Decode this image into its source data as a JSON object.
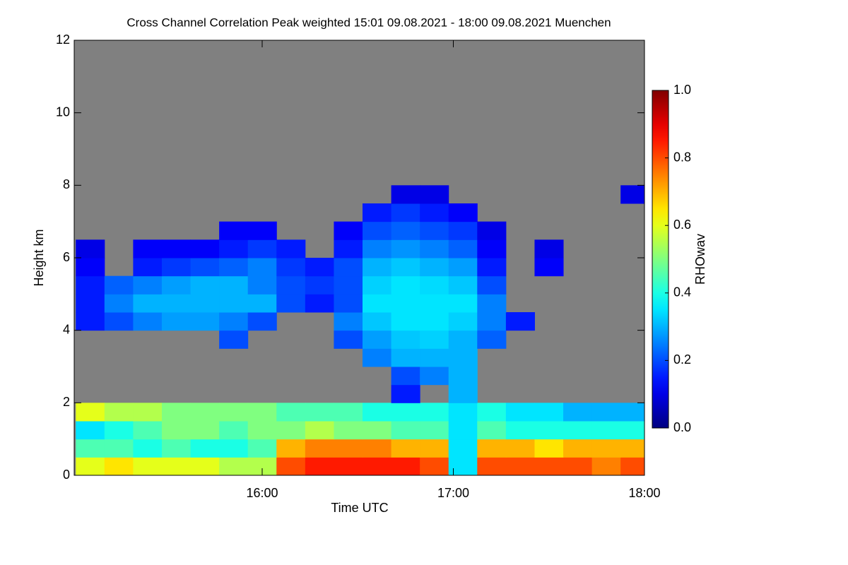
{
  "chart_data": {
    "type": "heatmap",
    "title": "Cross Channel Correlation Peak weighted   15:01 09.08.2021 - 18:00 09.08.2021 Muenchen",
    "xlabel": "Time UTC",
    "ylabel": "Height km",
    "colorbar_label": "RHOwav",
    "colormap": "jet",
    "xlim": [
      15.0167,
      18.0
    ],
    "xticks": [
      {
        "value": 16,
        "label": "16:00"
      },
      {
        "value": 17,
        "label": "17:00"
      },
      {
        "value": 18,
        "label": "18:00"
      }
    ],
    "ylim": [
      0,
      12
    ],
    "yticks": [
      0,
      2,
      4,
      6,
      8,
      10,
      12
    ],
    "zlim": [
      0,
      1
    ],
    "zticks": [
      {
        "value": 0,
        "label": "0.0"
      },
      {
        "value": 0.2,
        "label": "0.2"
      },
      {
        "value": 0.4,
        "label": "0.4"
      },
      {
        "value": 0.6,
        "label": "0.6"
      },
      {
        "value": 0.8,
        "label": "0.8"
      },
      {
        "value": 1,
        "label": "1.0"
      }
    ],
    "x": [
      15.1,
      15.25,
      15.4,
      15.55,
      15.7,
      15.85,
      16.0,
      16.15,
      16.3,
      16.45,
      16.6,
      16.75,
      16.9,
      17.05,
      17.2,
      17.35,
      17.5,
      17.65,
      17.8,
      17.95
    ],
    "y": [
      0.25,
      0.75,
      1.25,
      1.75,
      2.25,
      2.75,
      3.25,
      3.75,
      4.25,
      4.75,
      5.25,
      5.75,
      6.25,
      6.75,
      7.25,
      7.75
    ],
    "z": [
      [
        0.6,
        0.65,
        0.6,
        0.6,
        0.6,
        0.55,
        0.55,
        0.8,
        0.85,
        0.85,
        0.85,
        0.85,
        0.8,
        0.35,
        0.8,
        0.8,
        0.8,
        0.8,
        0.75,
        0.8
      ],
      [
        0.45,
        0.45,
        0.4,
        0.45,
        0.4,
        0.4,
        0.45,
        0.7,
        0.75,
        0.75,
        0.75,
        0.7,
        0.7,
        0.35,
        0.7,
        0.7,
        0.65,
        0.7,
        0.7,
        0.7
      ],
      [
        0.35,
        0.4,
        0.45,
        0.5,
        0.5,
        0.45,
        0.5,
        0.5,
        0.55,
        0.5,
        0.5,
        0.45,
        0.45,
        0.35,
        0.45,
        0.4,
        0.4,
        0.4,
        0.4,
        0.4
      ],
      [
        0.6,
        0.55,
        0.55,
        0.5,
        0.5,
        0.5,
        0.5,
        0.45,
        0.45,
        0.45,
        0.4,
        0.4,
        0.4,
        0.35,
        0.4,
        0.35,
        0.35,
        0.3,
        0.3,
        0.3
      ],
      [
        null,
        null,
        null,
        null,
        null,
        null,
        null,
        null,
        null,
        null,
        null,
        0.15,
        null,
        0.3,
        null,
        null,
        null,
        null,
        null,
        null
      ],
      [
        null,
        null,
        null,
        null,
        null,
        null,
        null,
        null,
        null,
        null,
        null,
        0.2,
        0.25,
        0.3,
        null,
        null,
        null,
        null,
        null,
        null
      ],
      [
        null,
        null,
        null,
        null,
        null,
        null,
        null,
        null,
        null,
        null,
        0.25,
        0.3,
        0.3,
        0.3,
        null,
        null,
        null,
        null,
        null,
        null
      ],
      [
        null,
        null,
        null,
        null,
        null,
        0.2,
        null,
        null,
        null,
        0.2,
        0.28,
        0.32,
        0.33,
        0.3,
        0.22,
        null,
        null,
        null,
        null,
        null
      ],
      [
        0.15,
        0.2,
        0.25,
        0.28,
        0.28,
        0.25,
        0.2,
        null,
        null,
        0.25,
        0.32,
        0.35,
        0.35,
        0.33,
        0.25,
        0.15,
        null,
        null,
        null,
        null
      ],
      [
        0.15,
        0.25,
        0.3,
        0.3,
        0.3,
        0.3,
        0.3,
        0.2,
        0.15,
        0.2,
        0.35,
        0.35,
        0.35,
        0.35,
        0.25,
        null,
        null,
        null,
        null,
        null
      ],
      [
        0.15,
        0.22,
        0.25,
        0.28,
        0.3,
        0.3,
        0.25,
        0.2,
        0.18,
        0.2,
        0.33,
        0.35,
        0.34,
        0.32,
        0.2,
        null,
        null,
        null,
        null,
        null
      ],
      [
        0.12,
        null,
        0.15,
        0.18,
        0.2,
        0.22,
        0.25,
        0.18,
        0.15,
        0.2,
        0.3,
        0.32,
        0.3,
        0.28,
        0.15,
        null,
        0.12,
        null,
        null,
        null
      ],
      [
        0.1,
        null,
        0.12,
        0.12,
        0.12,
        0.15,
        0.18,
        0.15,
        null,
        0.15,
        0.25,
        0.27,
        0.25,
        0.22,
        0.12,
        null,
        0.1,
        null,
        null,
        null
      ],
      [
        null,
        null,
        null,
        null,
        null,
        0.12,
        0.12,
        null,
        null,
        0.12,
        0.2,
        0.22,
        0.2,
        0.18,
        0.1,
        null,
        null,
        null,
        null,
        null
      ],
      [
        null,
        null,
        null,
        null,
        null,
        null,
        null,
        null,
        null,
        null,
        0.15,
        0.18,
        0.15,
        0.12,
        null,
        null,
        null,
        null,
        null,
        null
      ],
      [
        null,
        null,
        null,
        null,
        null,
        null,
        null,
        null,
        null,
        null,
        null,
        0.1,
        0.1,
        null,
        null,
        null,
        null,
        null,
        null,
        0.1
      ]
    ]
  }
}
